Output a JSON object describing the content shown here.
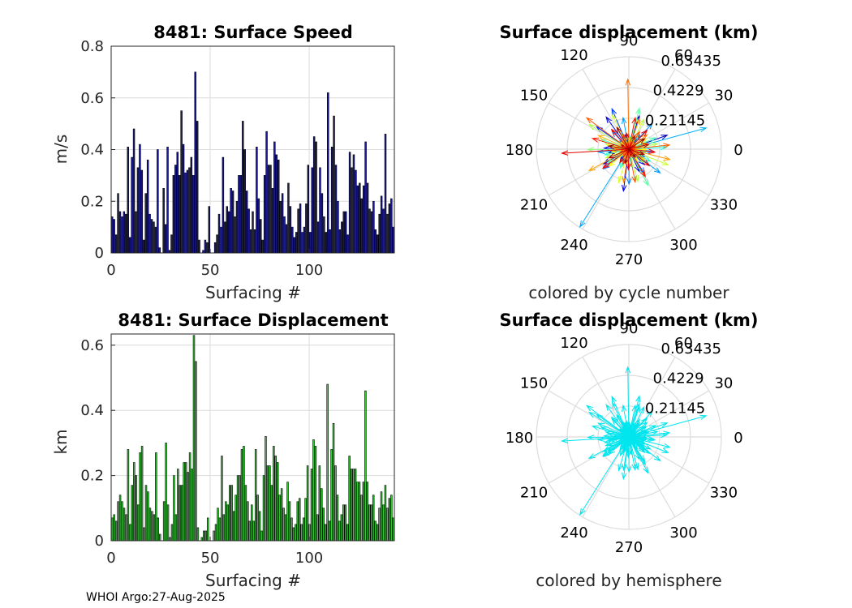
{
  "footer": "WHOI Argo:27-Aug-2025",
  "colors": {
    "speed_bar": "#1a1a8c",
    "disp_bar": "#39c839",
    "hemisphere": "#00e5ee",
    "grid": "#dcdcdc"
  },
  "chart_data": [
    {
      "type": "bar",
      "title": "8481: Surface Speed",
      "xlabel": "Surfacing #",
      "ylabel": "m/s",
      "xlim": [
        0,
        143
      ],
      "ylim": [
        0,
        0.8
      ],
      "xticks": [
        0,
        50,
        100
      ],
      "yticks": [
        0,
        0.2,
        0.4,
        0.6,
        0.8
      ],
      "xtick_labels": [
        "0",
        "50",
        "100"
      ],
      "ytick_labels": [
        "0",
        "0.2",
        "0.4",
        "0.6",
        "0.8"
      ],
      "values": [
        0.14,
        0.13,
        0.07,
        0.23,
        0.16,
        0.14,
        0.16,
        0.15,
        0.41,
        0.06,
        0.37,
        0.48,
        0.16,
        0.33,
        0.42,
        0.32,
        0.05,
        0.23,
        0.36,
        0.15,
        0.13,
        0.12,
        0.1,
        0.4,
        0.02,
        0.0,
        0.25,
        0.11,
        0.41,
        0.01,
        0.07,
        0.3,
        0.34,
        0.39,
        0.3,
        0.55,
        0.42,
        0.31,
        0.32,
        0.33,
        0.37,
        0.3,
        0.7,
        0.51,
        0.05,
        0.0,
        0.01,
        0.05,
        0.04,
        0.18,
        0.0,
        0.0,
        0.04,
        0.07,
        0.15,
        0.1,
        0.37,
        0.12,
        0.18,
        0.16,
        0.25,
        0.24,
        0.14,
        0.2,
        0.3,
        0.3,
        0.51,
        0.4,
        0.24,
        0.17,
        0.09,
        0.16,
        0.09,
        0.41,
        0.21,
        0.13,
        0.05,
        0.3,
        0.47,
        0.34,
        0.34,
        0.25,
        0.43,
        0.38,
        0.36,
        0.2,
        0.23,
        0.14,
        0.11,
        0.27,
        0.18,
        0.1,
        0.06,
        0.08,
        0.17,
        0.19,
        0.08,
        0.1,
        0.19,
        0.34,
        0.08,
        0.33,
        0.45,
        0.43,
        0.12,
        0.33,
        0.23,
        0.14,
        0.08,
        0.62,
        0.09,
        0.41,
        0.53,
        0.34,
        0.2,
        0.09,
        0.12,
        0.16,
        0.16,
        0.07,
        0.39,
        0.33,
        0.38,
        0.32,
        0.26,
        0.27,
        0.21,
        0.26,
        0.43,
        0.27,
        0.17,
        0.16,
        0.2,
        0.09,
        0.07,
        0.15,
        0.22,
        0.17,
        0.46,
        0.15,
        0.19,
        0.21,
        0.1
      ]
    },
    {
      "type": "polar",
      "title": "Surface displacement (km)",
      "xlabel": "colored by cycle number",
      "r_ticks": [
        "0.21145",
        "0.4229",
        "0.63435"
      ],
      "r_max": 0.63435,
      "angle_ticks": [
        "0",
        "30",
        "60",
        "90",
        "120",
        "150",
        "180",
        "210",
        "240",
        "270",
        "300",
        "330"
      ],
      "coloring": "cycle number"
    },
    {
      "type": "bar",
      "title": "8481: Surface Displacement",
      "xlabel": "Surfacing #",
      "ylabel": "km",
      "xlim": [
        0,
        143
      ],
      "ylim": [
        0,
        0.63435
      ],
      "xticks": [
        0,
        50,
        100
      ],
      "yticks": [
        0,
        0.2,
        0.4,
        0.6
      ],
      "xtick_labels": [
        "0",
        "50",
        "100"
      ],
      "ytick_labels": [
        "0",
        "0.2",
        "0.4",
        "0.6"
      ],
      "values": [
        0.07,
        0.08,
        0.06,
        0.12,
        0.14,
        0.12,
        0.1,
        0.08,
        0.28,
        0.05,
        0.17,
        0.24,
        0.2,
        0.11,
        0.27,
        0.29,
        0.04,
        0.17,
        0.15,
        0.1,
        0.09,
        0.08,
        0.27,
        0.07,
        0.02,
        0.0,
        0.12,
        0.3,
        0.11,
        0.01,
        0.05,
        0.2,
        0.08,
        0.22,
        0.17,
        0.17,
        0.24,
        0.24,
        0.21,
        0.27,
        0.22,
        0.63,
        0.55,
        0.04,
        0.0,
        0.01,
        0.03,
        0.03,
        0.07,
        0.0,
        0.0,
        0.03,
        0.05,
        0.1,
        0.07,
        0.26,
        0.08,
        0.12,
        0.11,
        0.17,
        0.17,
        0.09,
        0.14,
        0.2,
        0.2,
        0.28,
        0.29,
        0.17,
        0.12,
        0.06,
        0.11,
        0.06,
        0.28,
        0.14,
        0.09,
        0.03,
        0.2,
        0.32,
        0.23,
        0.23,
        0.17,
        0.29,
        0.26,
        0.24,
        0.14,
        0.16,
        0.1,
        0.08,
        0.18,
        0.12,
        0.07,
        0.04,
        0.05,
        0.12,
        0.13,
        0.05,
        0.07,
        0.13,
        0.23,
        0.05,
        0.22,
        0.31,
        0.29,
        0.08,
        0.23,
        0.16,
        0.1,
        0.05,
        0.48,
        0.06,
        0.28,
        0.36,
        0.23,
        0.14,
        0.06,
        0.08,
        0.11,
        0.11,
        0.05,
        0.26,
        0.22,
        0.22,
        0.22,
        0.18,
        0.18,
        0.14,
        0.18,
        0.46,
        0.18,
        0.11,
        0.11,
        0.14,
        0.06,
        0.05,
        0.1,
        0.15,
        0.11,
        0.17,
        0.1,
        0.13,
        0.14,
        0.07
      ]
    },
    {
      "type": "polar",
      "title": "Surface displacement (km)",
      "xlabel": "colored by hemisphere",
      "r_ticks": [
        "0.21145",
        "0.4229",
        "0.63435"
      ],
      "r_max": 0.63435,
      "angle_ticks": [
        "0",
        "30",
        "60",
        "90",
        "120",
        "150",
        "180",
        "210",
        "240",
        "270",
        "300",
        "330"
      ],
      "coloring": "hemisphere"
    }
  ]
}
